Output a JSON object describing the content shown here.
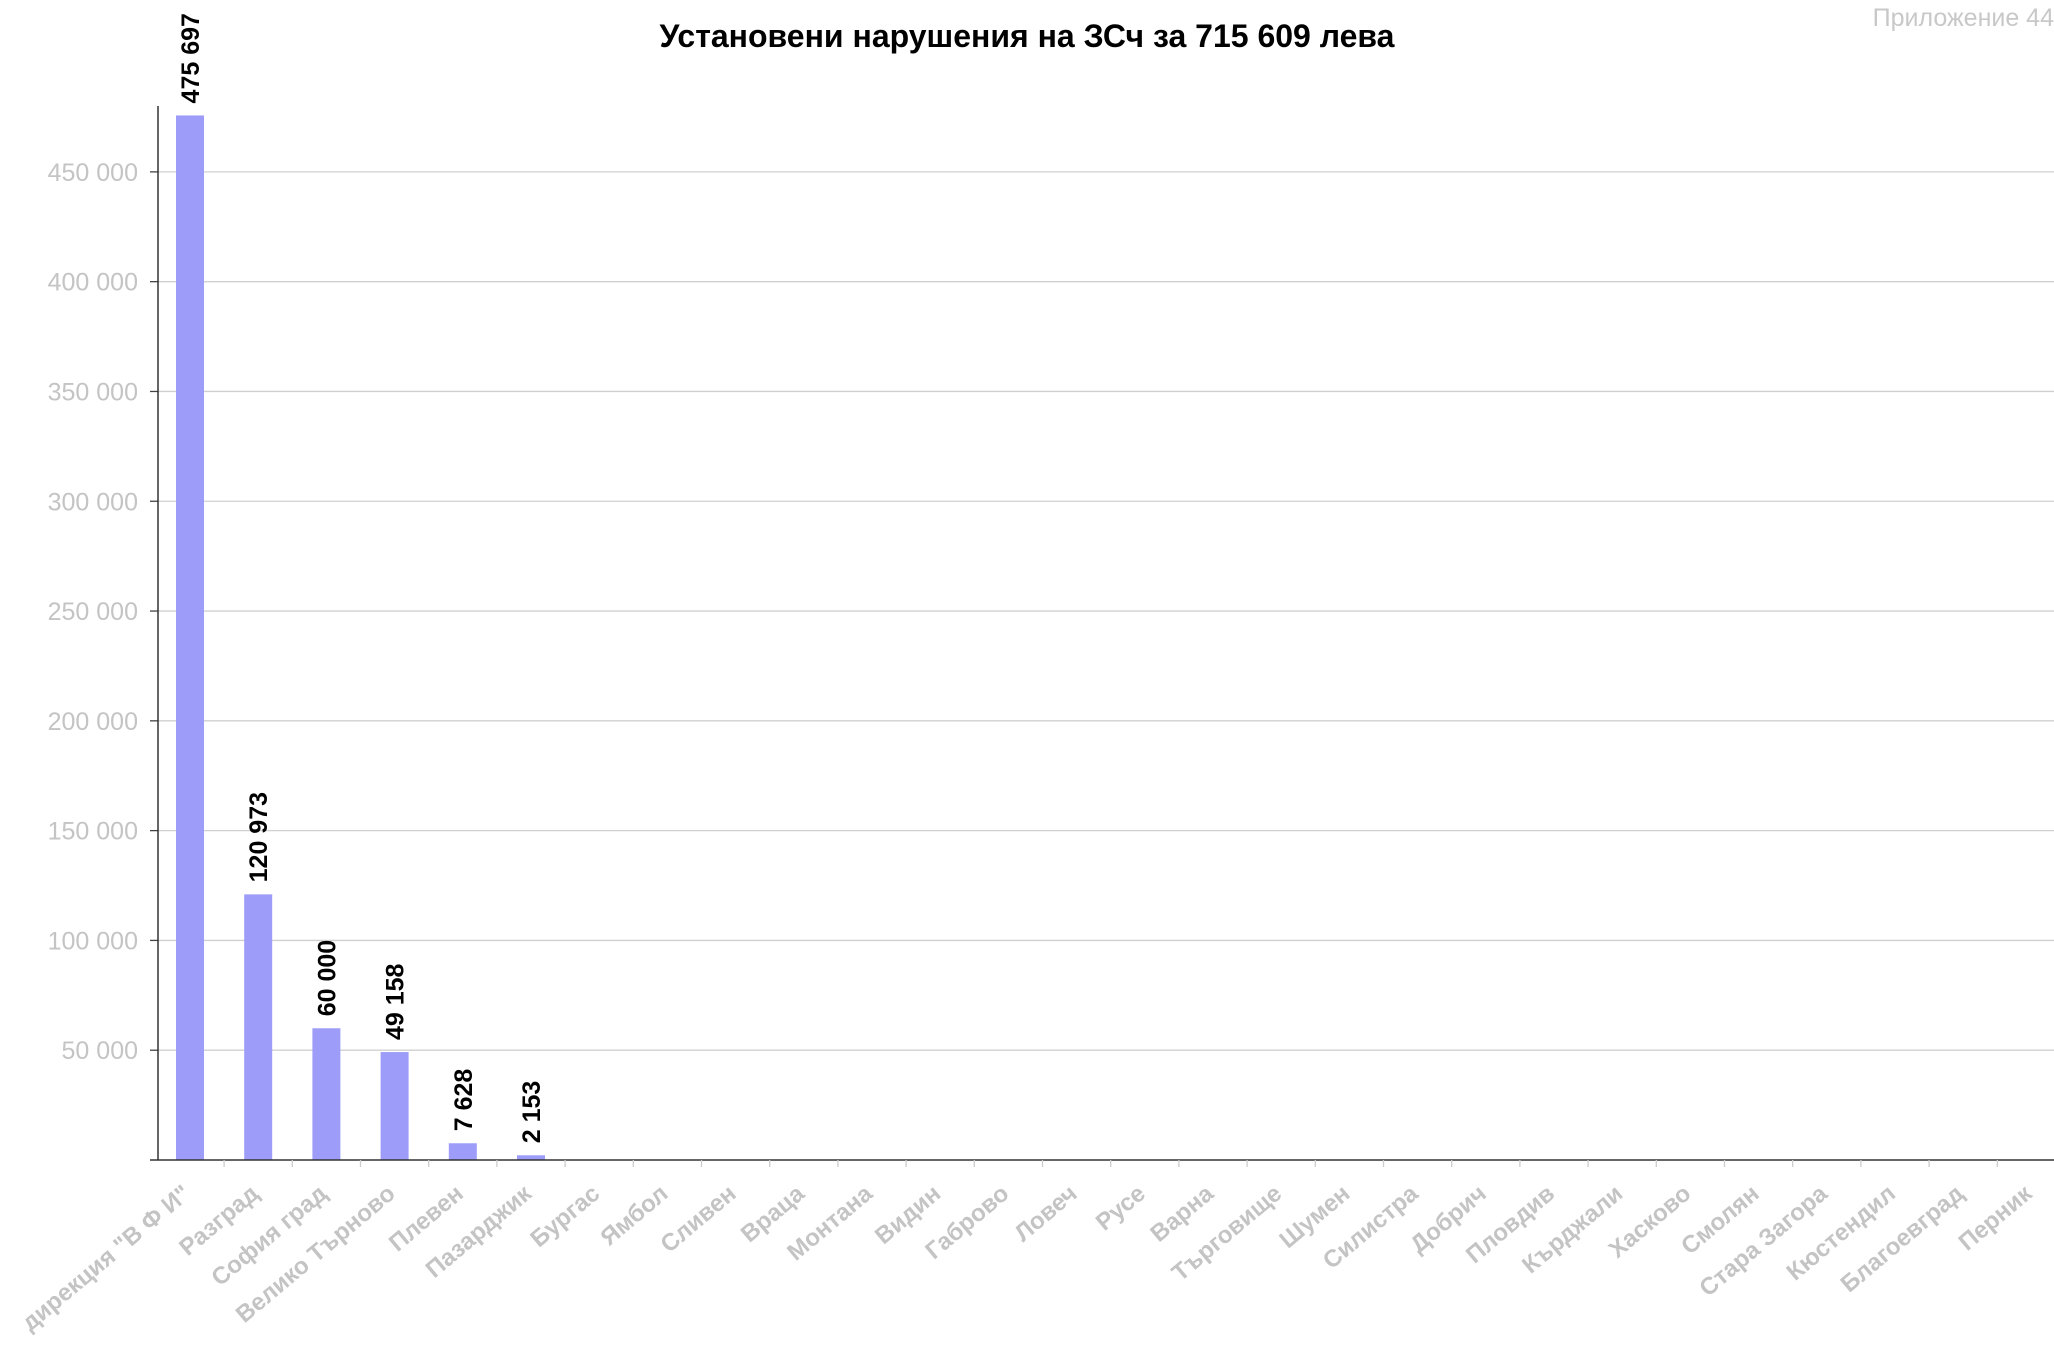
{
  "annex_label": "Приложение 44",
  "chart_data": {
    "type": "bar",
    "title": "Установени нарушения на ЗСч за 715 609 лева",
    "xlabel": "",
    "ylabel": "",
    "ylim": [
      0,
      480000
    ],
    "yticks": [
      50000,
      100000,
      150000,
      200000,
      250000,
      300000,
      350000,
      400000,
      450000
    ],
    "ytick_labels": [
      "50 000",
      "100 000",
      "150 000",
      "200 000",
      "250 000",
      "300 000",
      "350 000",
      "400 000",
      "450 000"
    ],
    "grid": true,
    "legend": "none",
    "bar_color": "#9d9df9",
    "categories": [
      "дирекция \"В Ф И\"",
      "Разград",
      "София град",
      "Велико Търново",
      "Плевен",
      "Пазарджик",
      "Бургас",
      "Ямбол",
      "Сливен",
      "Враца",
      "Монтана",
      "Видин",
      "Габрово",
      "Ловеч",
      "Русе",
      "Варна",
      "Търговище",
      "Шумен",
      "Силистра",
      "Добрич",
      "Пловдив",
      "Кърджали",
      "Хасково",
      "Смолян",
      "Стара Загора",
      "Кюстендил",
      "Благоевград",
      "Перник"
    ],
    "values": [
      475697,
      120973,
      60000,
      49158,
      7628,
      2153,
      0,
      0,
      0,
      0,
      0,
      0,
      0,
      0,
      0,
      0,
      0,
      0,
      0,
      0,
      0,
      0,
      0,
      0,
      0,
      0,
      0,
      0
    ],
    "data_labels": [
      "475 697",
      "120 973",
      "60 000",
      "49 158",
      "7 628",
      "2 153",
      "",
      "",
      "",
      "",
      "",
      "",
      "",
      "",
      "",
      "",
      "",
      "",
      "",
      "",
      "",
      "",
      "",
      "",
      "",
      "",
      "",
      ""
    ]
  }
}
